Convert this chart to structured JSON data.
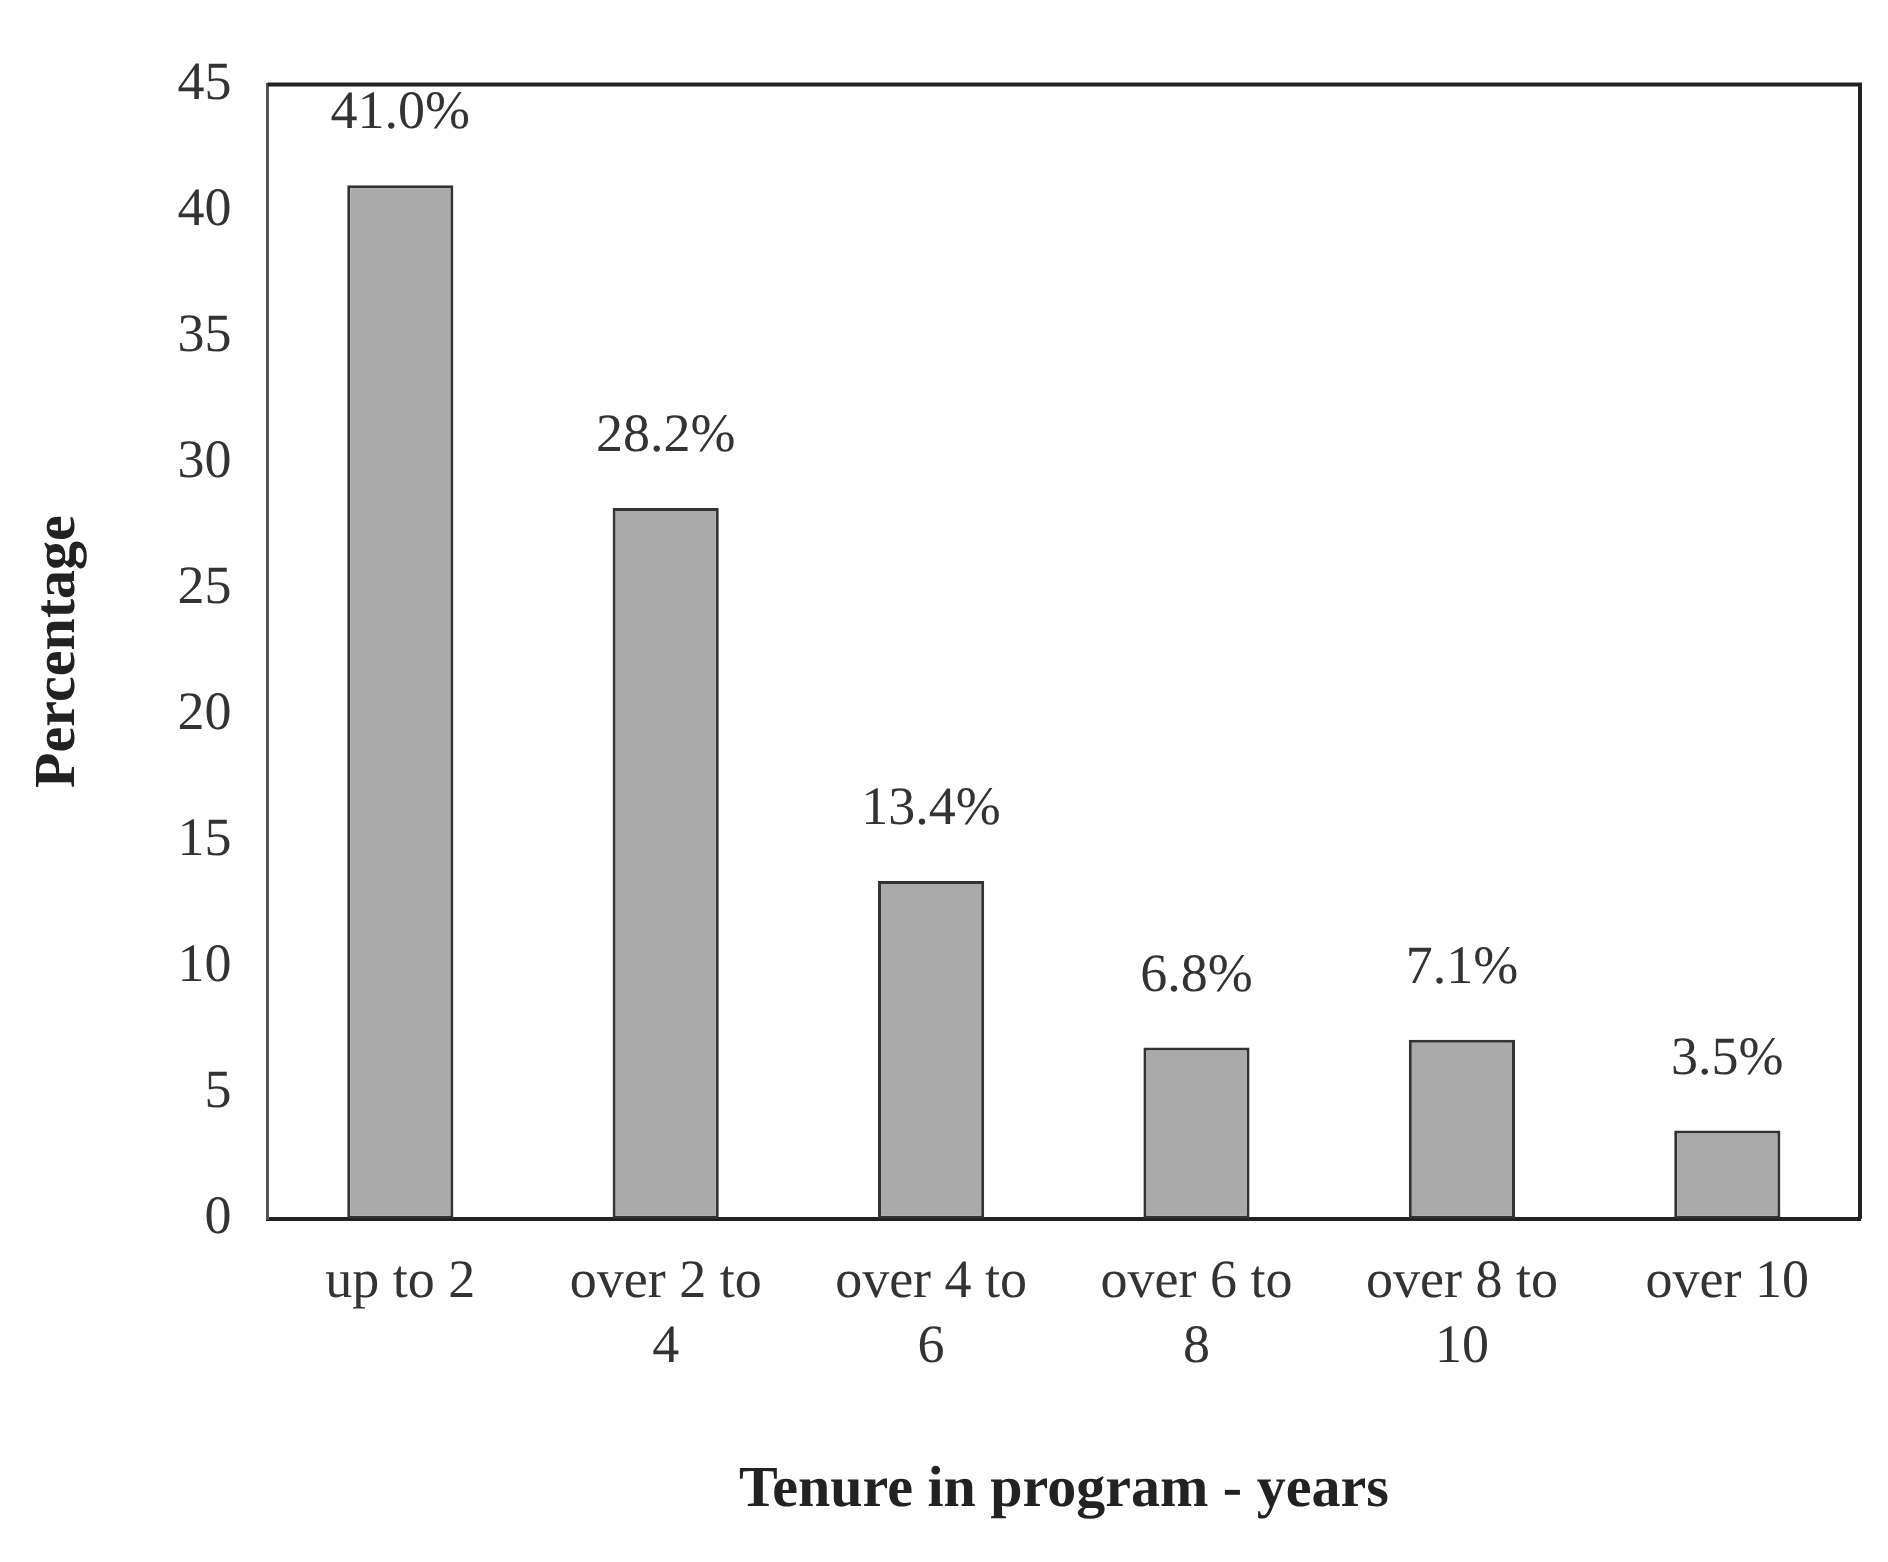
{
  "chart_data": {
    "type": "bar",
    "categories": [
      "up to 2",
      "over 2 to 4",
      "over 4 to 6",
      "over 6 to 8",
      "over 8 to 10",
      "over 10"
    ],
    "values": [
      41.0,
      28.2,
      13.4,
      6.8,
      7.1,
      3.5
    ],
    "color": "#aaaaaa",
    "value_labels": [
      "41.0%",
      "28.2%",
      "13.4%",
      "6.8%",
      "7.1%",
      "3.5%"
    ],
    "xlabel": "Tenure in program - years",
    "ylabel": "Percentage",
    "ylim": [
      0,
      45
    ],
    "yticks": [
      0,
      5,
      10,
      15,
      20,
      25,
      30,
      35,
      40,
      45
    ],
    "grid": false
  }
}
